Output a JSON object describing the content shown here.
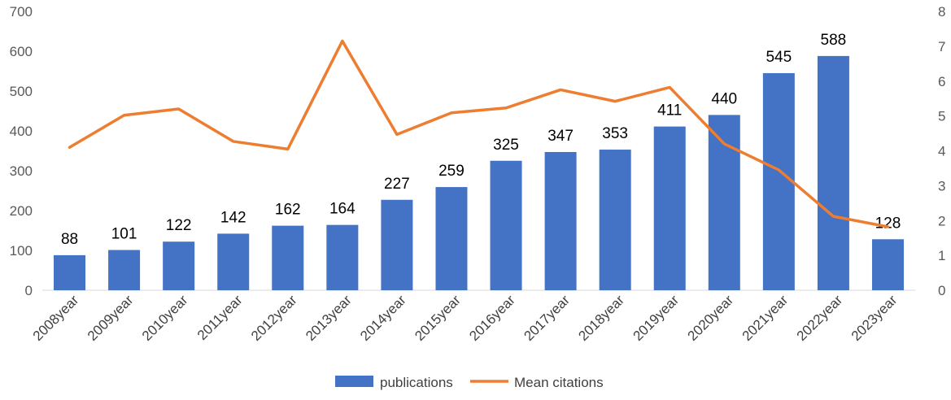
{
  "chart_data": {
    "type": "bar",
    "title": "",
    "xlabel": "",
    "categories": [
      "2008year",
      "2009year",
      "2010year",
      "2011year",
      "2012year",
      "2013year",
      "2014year",
      "2015year",
      "2016year",
      "2017year",
      "2018year",
      "2019year",
      "2020year",
      "2021year",
      "2022year",
      "2023year"
    ],
    "series": [
      {
        "name": "publications",
        "type": "bar",
        "axis": "left",
        "color": "#4472C4",
        "values": [
          88,
          101,
          122,
          142,
          162,
          164,
          227,
          259,
          325,
          347,
          353,
          411,
          440,
          545,
          588,
          128
        ]
      },
      {
        "name": "Mean citations",
        "type": "line",
        "axis": "right",
        "color": "#ED7D31",
        "values": [
          4.1,
          5.02,
          5.2,
          4.27,
          4.05,
          7.15,
          4.47,
          5.09,
          5.23,
          5.75,
          5.42,
          5.82,
          4.2,
          3.45,
          2.12,
          1.82
        ]
      }
    ],
    "ylim_left": [
      0,
      700
    ],
    "yticks_left": [
      0,
      100,
      200,
      300,
      400,
      500,
      600,
      700
    ],
    "ylim_right": [
      0,
      8
    ],
    "yticks_right": [
      0,
      1,
      2,
      3,
      4,
      5,
      6,
      7,
      8
    ],
    "grid": false,
    "legend_position": "bottom"
  }
}
